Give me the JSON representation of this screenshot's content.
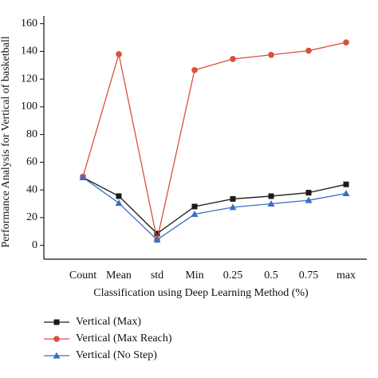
{
  "chart_data": {
    "type": "line",
    "x_label": "Classification using Deep Learning Method (%)",
    "y_label": "Performance Analysis for Vertical of basketball",
    "categories": [
      "Count",
      "Mean",
      "std",
      "Min",
      "0.25",
      "0.5",
      "0.75",
      "max"
    ],
    "series": [
      {
        "name": "Vertical (Max)",
        "color": "#1a1a1a",
        "marker": "square",
        "values": [
          49,
          35.5,
          8.5,
          28,
          33.5,
          35.5,
          38,
          44
        ]
      },
      {
        "name": "Vertical (Max Reach)",
        "color": "#d9503c",
        "marker": "circle",
        "values": [
          49.5,
          138,
          4,
          126.5,
          134.5,
          137.5,
          140.5,
          146.5
        ]
      },
      {
        "name": "Vertical (No Step)",
        "color": "#3a6fc4",
        "marker": "triangle",
        "values": [
          49,
          30.5,
          4,
          22.5,
          27.5,
          30,
          32.5,
          37.5
        ]
      }
    ],
    "ylim": [
      -10,
      165
    ],
    "yticks": [
      0,
      20,
      40,
      60,
      80,
      100,
      120,
      140,
      160
    ],
    "grid": false,
    "legend": "bottom-left"
  }
}
